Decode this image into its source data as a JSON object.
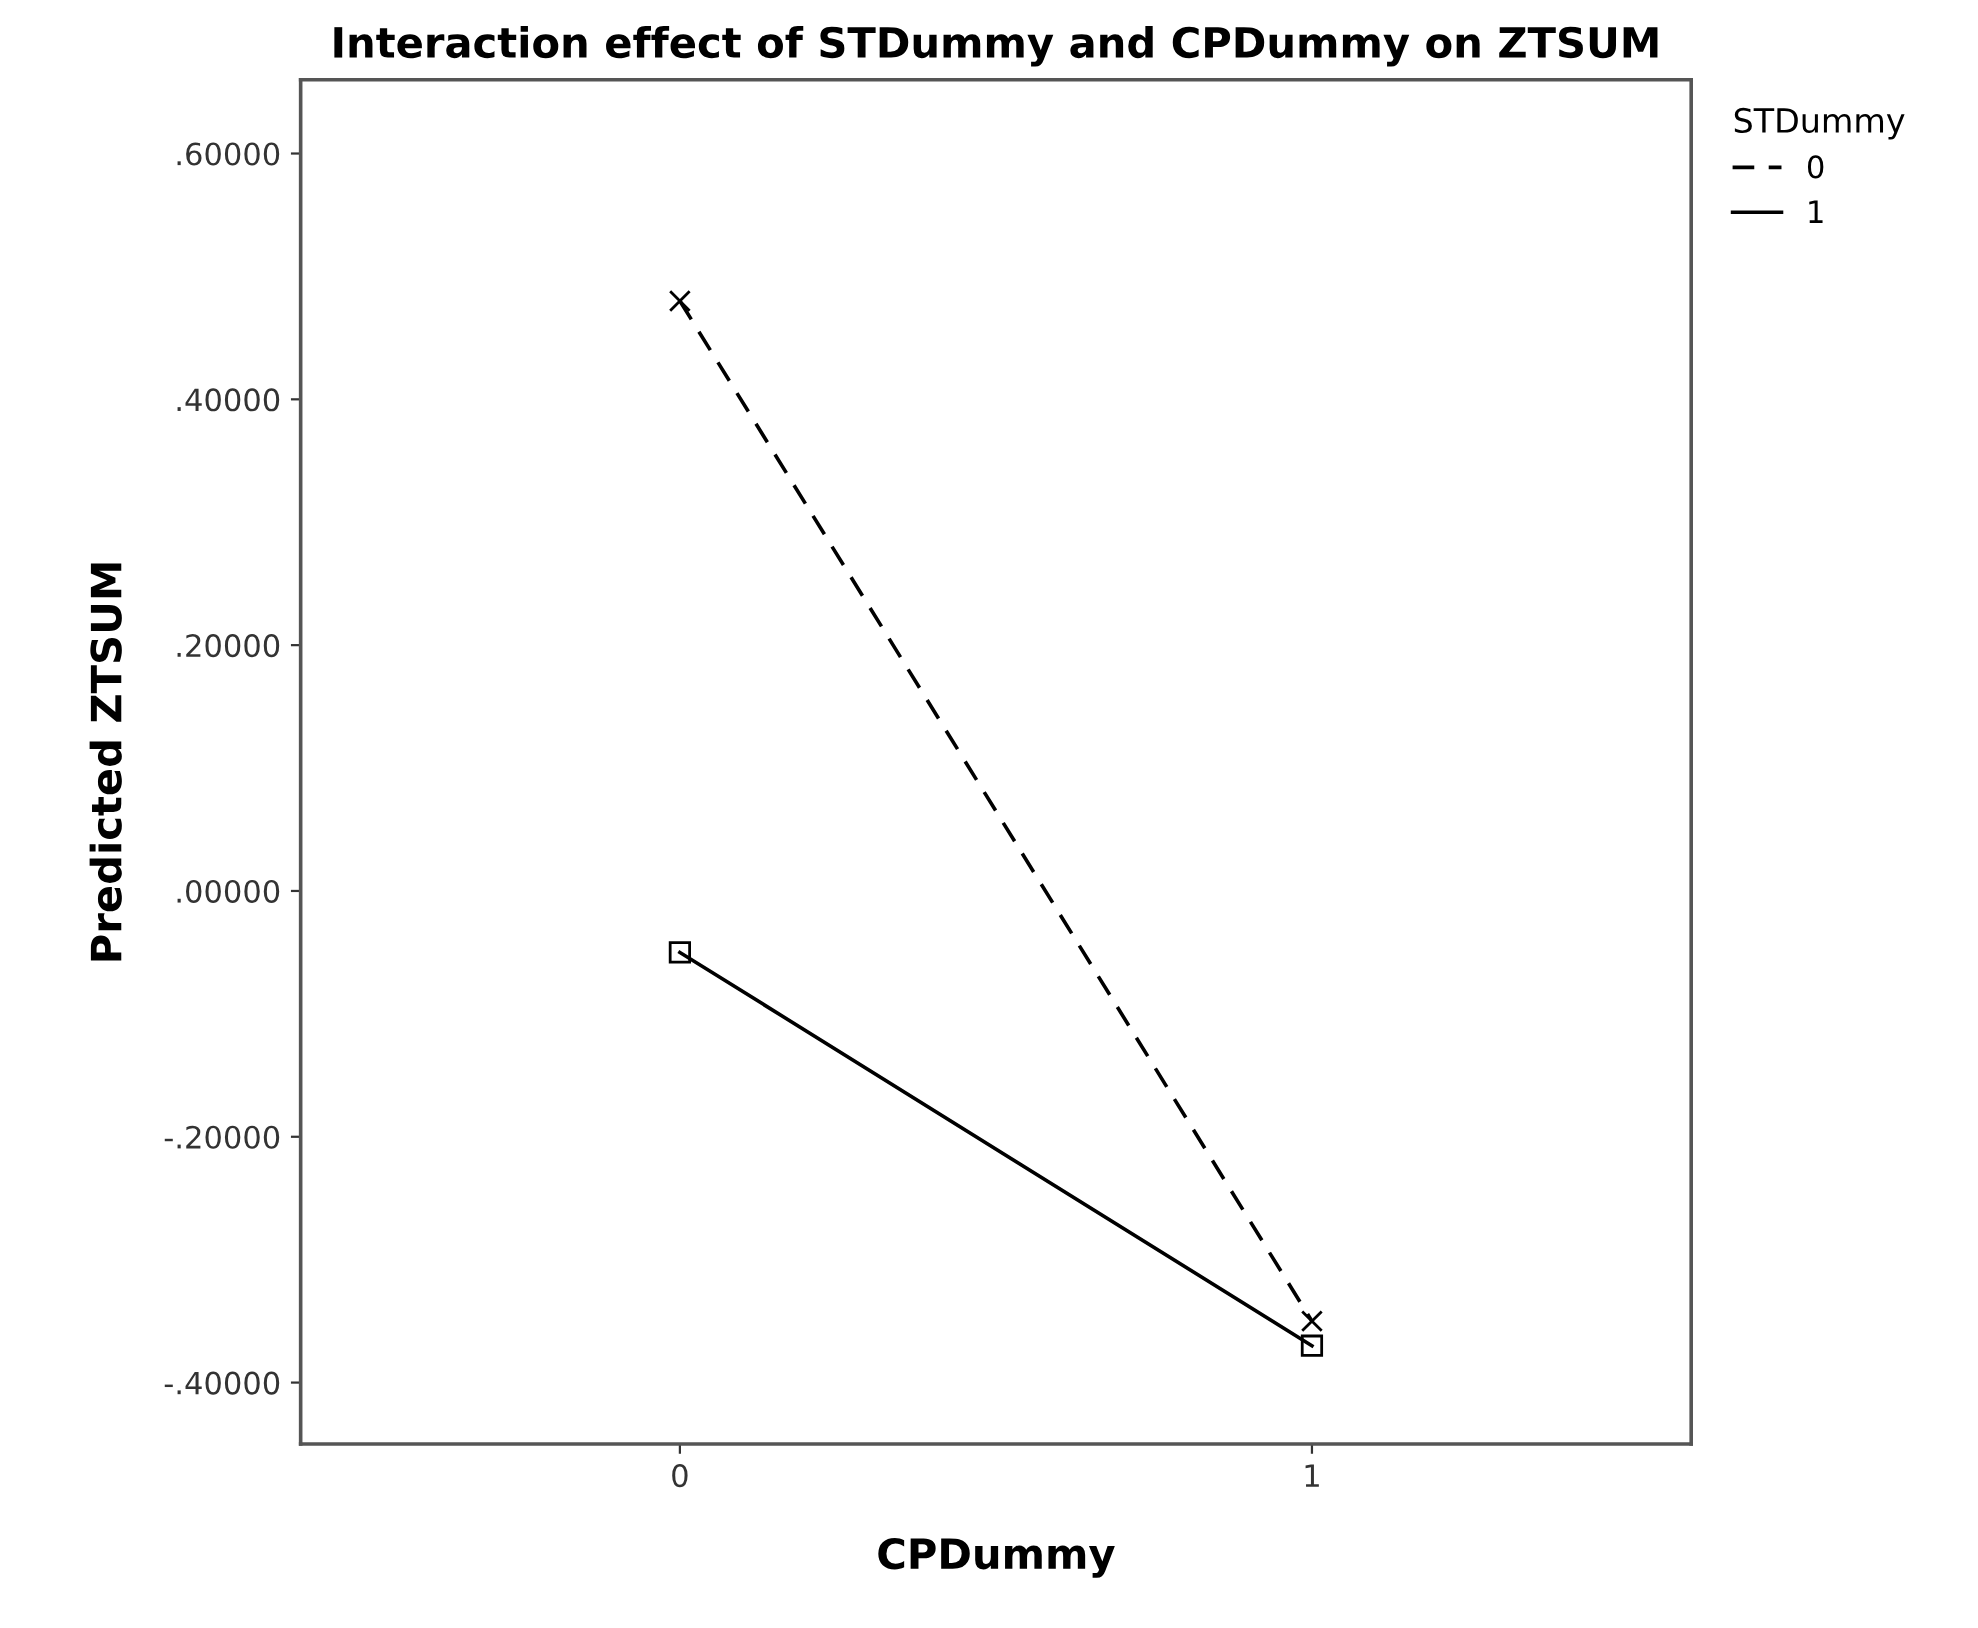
{
  "chart_data": {
    "type": "line",
    "title": "Interaction effect of STDummy and CPDummy on ZTSUM",
    "xlabel": "CPDummy",
    "ylabel": "Predicted ZTSUM",
    "legend_title": "STDummy",
    "legend": "top right",
    "x": [
      0,
      1
    ],
    "xlim": [
      -0.6,
      1.6
    ],
    "xticks": [
      0,
      1
    ],
    "ylim": [
      -0.45,
      0.66
    ],
    "yticks": [
      {
        "value": 0.6,
        "label": ".60000"
      },
      {
        "value": 0.4,
        "label": ".40000"
      },
      {
        "value": 0.2,
        "label": ".20000"
      },
      {
        "value": 0,
        "label": ".00000"
      },
      {
        "value": -0.2,
        "label": "-.20000"
      },
      {
        "value": -0.4,
        "label": "-.40000"
      }
    ],
    "grid": false,
    "series": [
      {
        "name": "0",
        "color": "#000000",
        "values": [
          0.48,
          -0.35
        ],
        "line_style": "dashed",
        "marker": "cross"
      },
      {
        "name": "1",
        "color": "#000000",
        "values": [
          -0.05,
          -0.37
        ],
        "line_style": "solid",
        "marker": "square"
      }
    ]
  }
}
